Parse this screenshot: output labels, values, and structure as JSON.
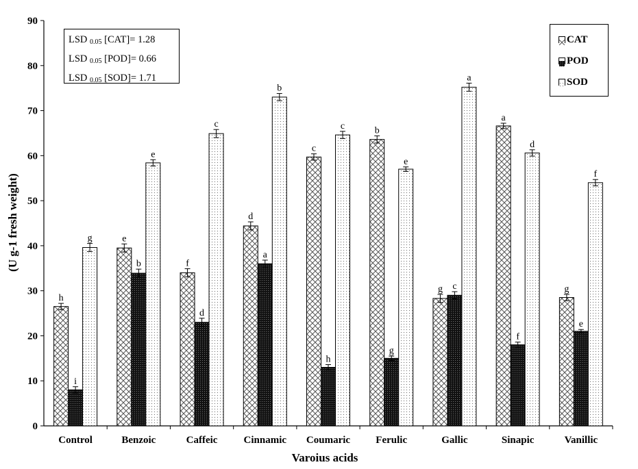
{
  "chart_data": {
    "type": "bar",
    "title": "",
    "xlabel": "Varoius acids",
    "ylabel": "(U g-1 fresh weight)",
    "ylim": [
      0,
      90
    ],
    "yticks": [
      "0",
      "10",
      "20",
      "30",
      "40",
      "50",
      "60",
      "70",
      "80",
      "90"
    ],
    "categories": [
      "Control",
      "Benzoic",
      "Caffeic",
      "Cinnamic",
      "Coumaric",
      "Ferulic",
      "Gallic",
      "Sinapic",
      "Vanillic"
    ],
    "series": [
      {
        "name": "CAT",
        "values": [
          26.5,
          39.5,
          34.0,
          44.4,
          59.7,
          63.6,
          28.3,
          66.6,
          28.5
        ],
        "errors": [
          0.7,
          0.9,
          0.9,
          0.9,
          0.7,
          0.8,
          0.9,
          0.6,
          0.7
        ],
        "letters": [
          "h",
          "e",
          "f",
          "d",
          "c",
          "b",
          "g",
          "a",
          "g"
        ]
      },
      {
        "name": "POD",
        "values": [
          8.0,
          33.9,
          23.0,
          36.0,
          13.0,
          15.0,
          29.0,
          18.0,
          21.0
        ],
        "errors": [
          0.7,
          0.9,
          0.9,
          0.8,
          0.6,
          0.5,
          0.8,
          0.6,
          0.4
        ],
        "letters": [
          "i",
          "b",
          "d",
          "a",
          "h",
          "g",
          "c",
          "f",
          "e"
        ]
      },
      {
        "name": "SOD",
        "values": [
          39.6,
          58.4,
          64.9,
          73.0,
          64.6,
          57.0,
          75.2,
          60.6,
          54.0
        ],
        "errors": [
          0.9,
          0.7,
          0.9,
          0.8,
          0.8,
          0.5,
          0.9,
          0.7,
          0.7
        ],
        "letters": [
          "g",
          "e",
          "c",
          "b",
          "c",
          "e",
          "a",
          "d",
          "f"
        ]
      }
    ],
    "lsd": {
      "lines": [
        {
          "prefix": "LSD",
          "sub": "0.05",
          "text": "[CAT]= 1.28"
        },
        {
          "prefix": "LSD",
          "sub": "0.05",
          "text": "[POD]= 0.66"
        },
        {
          "prefix": "LSD",
          "sub": "0.05",
          "text": "[SOD]= 1.71"
        }
      ]
    },
    "legend": {
      "position": "top-right",
      "labels": [
        "CAT",
        "POD",
        "SOD"
      ]
    }
  }
}
